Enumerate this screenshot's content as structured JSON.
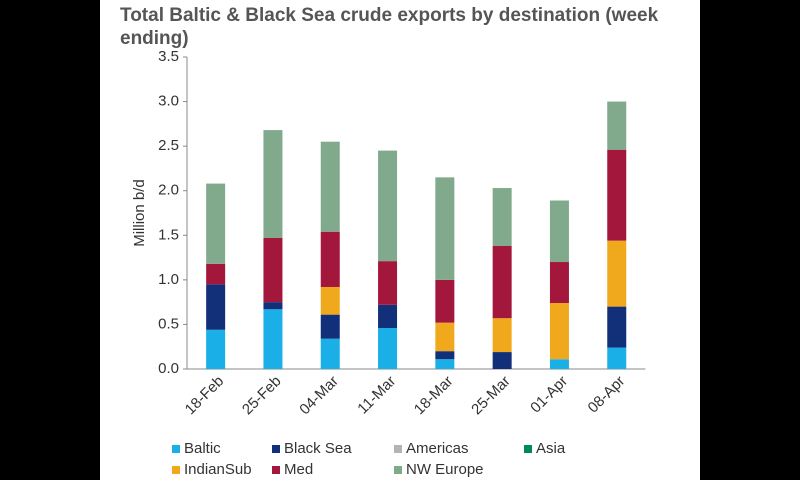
{
  "chart_data": {
    "type": "stacked_bar",
    "title": "Total Baltic & Black Sea crude exports by destination (week ending)",
    "y_label": "Million b/d",
    "categories": [
      "18-Feb",
      "25-Feb",
      "04-Mar",
      "11-Mar",
      "18-Mar",
      "25-Mar",
      "01-Apr",
      "08-Apr"
    ],
    "series": [
      {
        "name": "Baltic",
        "color": "#1aafe6",
        "values": [
          0.44,
          0.67,
          0.34,
          0.46,
          0.11,
          0,
          0.11,
          0.24
        ]
      },
      {
        "name": "Black Sea",
        "color": "#12307a",
        "values": [
          0.51,
          0.08,
          0.27,
          0.26,
          0.09,
          0.19,
          0,
          0.46
        ]
      },
      {
        "name": "Americas",
        "color": "#b4b4b4",
        "values": [
          0,
          0,
          0,
          0,
          0,
          0,
          0,
          0
        ]
      },
      {
        "name": "Asia",
        "color": "#00875a",
        "values": [
          0,
          0,
          0,
          0,
          0,
          0,
          0,
          0
        ]
      },
      {
        "name": "IndianSub",
        "color": "#f0a91c",
        "values": [
          0,
          0,
          0.31,
          0,
          0.32,
          0.38,
          0.63,
          0.74
        ]
      },
      {
        "name": "Med",
        "color": "#a3173c",
        "values": [
          0.23,
          0.72,
          0.62,
          0.49,
          0.48,
          0.81,
          0.46,
          1.02
        ]
      },
      {
        "name": "NW Europe",
        "color": "#80aa8b",
        "values": [
          0.9,
          1.21,
          1.01,
          1.24,
          1.15,
          0.65,
          0.69,
          0.54
        ]
      }
    ],
    "ylim": [
      0,
      3.5
    ],
    "yticks": [
      {
        "value": 0,
        "label": "0.0"
      },
      0.5,
      {
        "value": 1,
        "label": "1.0"
      },
      1.5,
      {
        "value": 2,
        "label": "2.0"
      },
      2.5,
      {
        "value": 3,
        "label": "3.0"
      },
      3.5
    ]
  }
}
